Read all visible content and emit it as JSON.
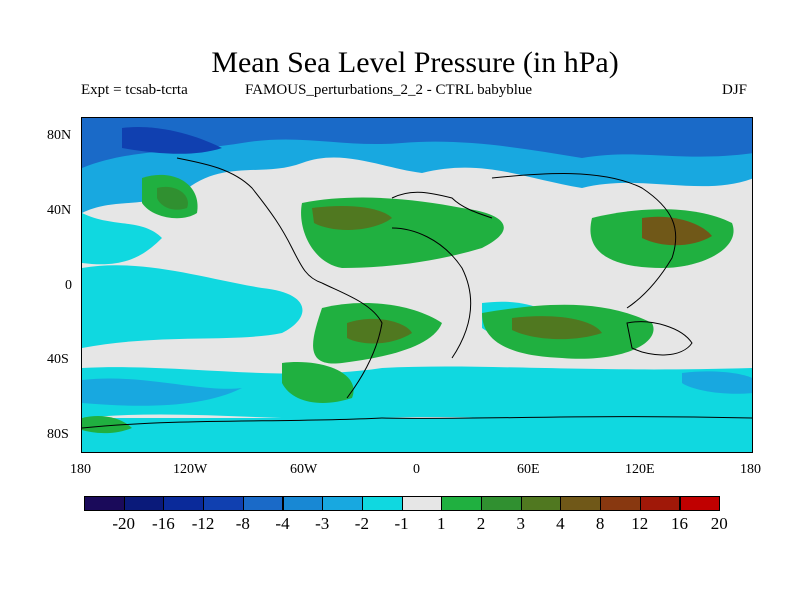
{
  "title": "Mean Sea Level Pressure (in hPa)",
  "experiment": "Expt = tcsab-tcrta",
  "comparison": "FAMOUS_perturbations_2_2 - CTRL babyblue",
  "season": "DJF",
  "lat_labels": [
    "80N",
    "40N",
    "0",
    "40S",
    "80S"
  ],
  "lon_labels": [
    "180",
    "120W",
    "60W",
    "0",
    "60E",
    "120E",
    "180"
  ],
  "colorbar": {
    "colors": [
      "#1a0a5a",
      "#0a1a7a",
      "#0a2a9a",
      "#1040b0",
      "#1a6ac8",
      "#1888d4",
      "#18a8e0",
      "#10d8e0",
      "#e6e6e6",
      "#20b040",
      "#309030",
      "#507820",
      "#705818",
      "#883810",
      "#a01808",
      "#c00000"
    ],
    "labels": [
      "-20",
      "-16",
      "-12",
      "-8",
      "-4",
      "-3",
      "-2",
      "-1",
      "1",
      "2",
      "3",
      "4",
      "8",
      "12",
      "16",
      "20"
    ]
  }
}
